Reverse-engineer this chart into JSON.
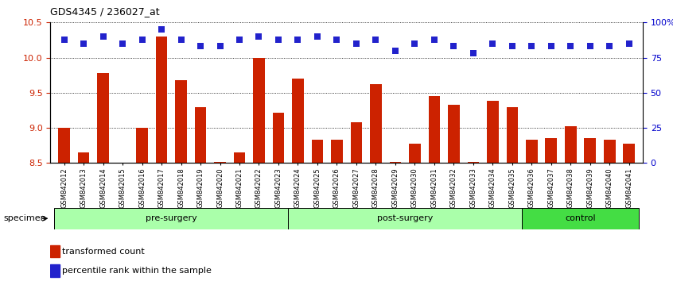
{
  "title": "GDS4345 / 236027_at",
  "samples": [
    "GSM842012",
    "GSM842013",
    "GSM842014",
    "GSM842015",
    "GSM842016",
    "GSM842017",
    "GSM842018",
    "GSM842019",
    "GSM842020",
    "GSM842021",
    "GSM842022",
    "GSM842023",
    "GSM842024",
    "GSM842025",
    "GSM842026",
    "GSM842027",
    "GSM842028",
    "GSM842029",
    "GSM842030",
    "GSM842031",
    "GSM842032",
    "GSM842033",
    "GSM842034",
    "GSM842035",
    "GSM842036",
    "GSM842037",
    "GSM842038",
    "GSM842039",
    "GSM842040",
    "GSM842041"
  ],
  "bar_values": [
    9.0,
    8.65,
    9.78,
    8.5,
    9.0,
    10.3,
    9.68,
    9.3,
    8.52,
    8.65,
    10.0,
    9.22,
    9.7,
    8.83,
    8.83,
    9.08,
    9.62,
    8.52,
    8.78,
    9.45,
    9.33,
    8.52,
    9.38,
    9.3,
    8.83,
    8.85,
    9.02,
    8.85,
    8.83,
    8.78
  ],
  "percentile_values": [
    88,
    85,
    90,
    85,
    88,
    95,
    88,
    83,
    83,
    88,
    90,
    88,
    88,
    90,
    88,
    85,
    88,
    80,
    85,
    88,
    83,
    78,
    85,
    83,
    83,
    83,
    83,
    83,
    83,
    85
  ],
  "bar_color": "#cc2200",
  "dot_color": "#2222cc",
  "ylim_left": [
    8.5,
    10.5
  ],
  "ylim_right": [
    0,
    100
  ],
  "yticks_left": [
    8.5,
    9.0,
    9.5,
    10.0,
    10.5
  ],
  "yticks_right": [
    0,
    25,
    50,
    75,
    100
  ],
  "ytick_labels_right": [
    "0",
    "25",
    "50",
    "75",
    "100%"
  ],
  "groups": [
    {
      "label": "pre-surgery",
      "start": 0,
      "end": 11,
      "color": "#aaffaa"
    },
    {
      "label": "post-surgery",
      "start": 12,
      "end": 23,
      "color": "#aaffaa"
    },
    {
      "label": "control",
      "start": 24,
      "end": 29,
      "color": "#44dd44"
    }
  ],
  "legend_items": [
    {
      "color": "#cc2200",
      "label": "transformed count"
    },
    {
      "color": "#2222cc",
      "label": "percentile rank within the sample"
    }
  ],
  "specimen_label": "specimen",
  "bar_width": 0.6,
  "dot_size": 28,
  "dot_marker": "s",
  "background_color": "#ffffff",
  "plot_bg_color": "#ffffff",
  "tick_label_color_left": "#cc2200",
  "tick_label_color_right": "#0000cc"
}
